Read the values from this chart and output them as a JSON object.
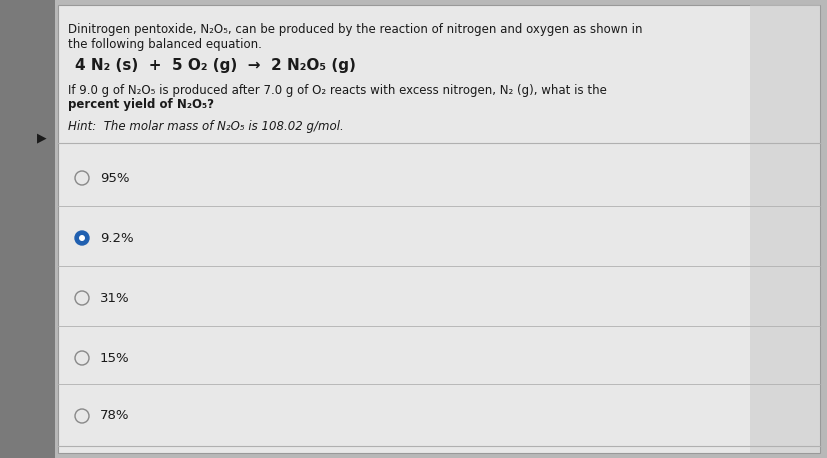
{
  "bg_color": "#b8b8b8",
  "panel_color": "#e0e0e0",
  "panel_left": "#d8d8d8",
  "text_color": "#1a1a1a",
  "dark_text": "#111111",
  "title_line1": "Dinitrogen pentoxide, N₂O₅, can be produced by the reaction of nitrogen and oxygen as shown in",
  "title_line2": "the following balanced equation.",
  "equation": "4 N₂ (s)  +  5 O₂ (g)  →  2 N₂O₅ (g)",
  "question_line1": "If 9.0 g of N₂O₅ is produced after 7.0 g of O₂ reacts with excess nitrogen, N₂ (g), what is the",
  "question_bold": "percent yield of N₂O₅?",
  "hint": "Hint:  The molar mass of N₂O₅ is 108.02 g/mol.",
  "choices": [
    "95%",
    "9.2%",
    "31%",
    "15%",
    "78%"
  ],
  "selected_index": 1,
  "selected_color": "#2060b0",
  "unselected_color": "#888888",
  "divider_color": "#b0b0b0"
}
